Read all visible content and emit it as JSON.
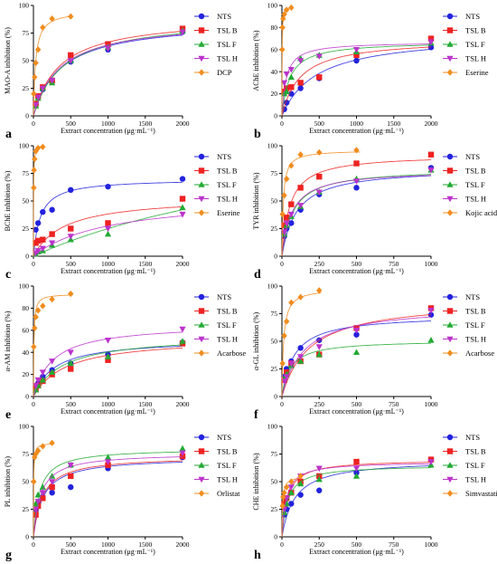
{
  "colors": {
    "NTS": "#2222dd",
    "TSL B": "#ee2222",
    "TSL F": "#22aa33",
    "TSL H": "#bb33cc",
    "control": "#f08c1e"
  },
  "chart_data": [
    {
      "type": "scatter",
      "panel_label": "a",
      "xlabel": "Extract concentration (μg·mL⁻¹)",
      "ylabel": "MAO-A inhibition (%)",
      "xlim": [
        0,
        2000
      ],
      "ylim": [
        0,
        100
      ],
      "xticks": [
        0,
        500,
        1000,
        1500,
        2000
      ],
      "yticks": [
        0,
        25,
        50,
        75,
        100
      ],
      "legend_position": "right",
      "series": [
        {
          "name": "NTS",
          "marker": "circle",
          "x": [
            31.25,
            62.5,
            125,
            250,
            500,
            1000,
            2000
          ],
          "y": [
            10,
            17,
            24,
            31,
            49,
            60,
            76
          ]
        },
        {
          "name": "TSL B",
          "marker": "square",
          "x": [
            31.25,
            62.5,
            125,
            250,
            500,
            1000,
            2000
          ],
          "y": [
            11,
            18,
            26,
            32,
            55,
            65,
            79
          ]
        },
        {
          "name": "TSL F",
          "marker": "triangle",
          "x": [
            31.25,
            62.5,
            125,
            250,
            500,
            1000,
            2000
          ],
          "y": [
            9,
            16,
            25,
            30,
            50,
            62,
            77
          ]
        },
        {
          "name": "TSL H",
          "marker": "triangle-down",
          "x": [
            31.25,
            62.5,
            125,
            250,
            500,
            1000,
            2000
          ],
          "y": [
            10,
            17,
            25,
            32,
            50,
            61,
            76
          ]
        },
        {
          "name": "DCP",
          "marker": "diamond",
          "x": [
            3.9,
            15.6,
            31.25,
            62.5,
            125,
            250,
            500
          ],
          "y": [
            20,
            35,
            48,
            60,
            80,
            88,
            90
          ]
        }
      ]
    },
    {
      "type": "scatter",
      "panel_label": "b",
      "xlabel": "Extract concentration (μg·mL⁻¹)",
      "ylabel": "AChE inhibition (%)",
      "xlim": [
        0,
        2000
      ],
      "ylim": [
        0,
        100
      ],
      "xticks": [
        0,
        500,
        1000,
        1500,
        2000
      ],
      "yticks": [
        0,
        20,
        40,
        60,
        80,
        100
      ],
      "legend_position": "right",
      "series": [
        {
          "name": "NTS",
          "marker": "circle",
          "x": [
            31.25,
            62.5,
            125,
            250,
            500,
            1000,
            2000
          ],
          "y": [
            6,
            12,
            20,
            25,
            34,
            50,
            62
          ]
        },
        {
          "name": "TSL B",
          "marker": "square",
          "x": [
            31.25,
            62.5,
            125,
            250,
            500,
            1000,
            2000
          ],
          "y": [
            22,
            25,
            26,
            30,
            35,
            55,
            70
          ]
        },
        {
          "name": "TSL F",
          "marker": "triangle",
          "x": [
            31.25,
            62.5,
            125,
            250,
            500,
            1000,
            2000
          ],
          "y": [
            20,
            22,
            35,
            52,
            55,
            58,
            66
          ]
        },
        {
          "name": "TSL H",
          "marker": "triangle-down",
          "x": [
            31.25,
            62.5,
            125,
            250,
            500,
            1000,
            2000
          ],
          "y": [
            30,
            38,
            42,
            50,
            54,
            60,
            67
          ]
        },
        {
          "name": "Eserine",
          "marker": "diamond",
          "x": [
            3.9,
            7.8,
            15.6,
            31.25,
            62.5,
            125
          ],
          "y": [
            60,
            80,
            88,
            92,
            96,
            98
          ]
        }
      ]
    },
    {
      "type": "scatter",
      "panel_label": "c",
      "xlabel": "Extract concentration (μg·mL⁻¹)",
      "ylabel": "BChE inhibition (%)",
      "xlim": [
        0,
        2000
      ],
      "ylim": [
        0,
        100
      ],
      "xticks": [
        0,
        500,
        1000,
        1500,
        2000
      ],
      "yticks": [
        0,
        25,
        50,
        75,
        100
      ],
      "legend_position": "right",
      "series": [
        {
          "name": "NTS",
          "marker": "circle",
          "x": [
            31.25,
            62.5,
            125,
            250,
            500,
            1000,
            2000
          ],
          "y": [
            24,
            30,
            40,
            42,
            60,
            63,
            70
          ]
        },
        {
          "name": "TSL B",
          "marker": "square",
          "x": [
            31.25,
            62.5,
            125,
            250,
            500,
            1000,
            2000
          ],
          "y": [
            12,
            14,
            15,
            20,
            25,
            30,
            52
          ]
        },
        {
          "name": "TSL F",
          "marker": "triangle",
          "x": [
            31.25,
            62.5,
            125,
            250,
            500,
            1000,
            2000
          ],
          "y": [
            2,
            4,
            5,
            10,
            15,
            20,
            44
          ]
        },
        {
          "name": "TSL H",
          "marker": "triangle-down",
          "x": [
            31.25,
            62.5,
            125,
            250,
            500,
            1000,
            2000
          ],
          "y": [
            3,
            5,
            7,
            12,
            18,
            25,
            38
          ]
        },
        {
          "name": "Eserine",
          "marker": "diamond",
          "x": [
            3.9,
            7.8,
            15.6,
            31.25,
            62.5,
            125
          ],
          "y": [
            62,
            78,
            88,
            95,
            98,
            99
          ]
        }
      ]
    },
    {
      "type": "scatter",
      "panel_label": "d",
      "xlabel": "Extract concentration (μg·mL⁻¹)",
      "ylabel": "TYR inhibition (%)",
      "xlim": [
        0,
        1000
      ],
      "ylim": [
        0,
        100
      ],
      "xticks": [
        0,
        250,
        500,
        750,
        1000
      ],
      "yticks": [
        0,
        25,
        50,
        75,
        100
      ],
      "legend_position": "right",
      "series": [
        {
          "name": "NTS",
          "marker": "circle",
          "x": [
            15.6,
            31.25,
            62.5,
            125,
            250,
            500,
            1000
          ],
          "y": [
            18,
            25,
            30,
            42,
            56,
            62,
            80
          ]
        },
        {
          "name": "TSL B",
          "marker": "square",
          "x": [
            15.6,
            31.25,
            62.5,
            125,
            250,
            500,
            1000
          ],
          "y": [
            28,
            35,
            47,
            62,
            72,
            84,
            92
          ]
        },
        {
          "name": "TSL F",
          "marker": "triangle",
          "x": [
            15.6,
            31.25,
            62.5,
            125,
            250,
            500,
            1000
          ],
          "y": [
            20,
            28,
            36,
            45,
            58,
            70,
            78
          ]
        },
        {
          "name": "TSL H",
          "marker": "triangle-down",
          "x": [
            15.6,
            31.25,
            62.5,
            125,
            250,
            500,
            1000
          ],
          "y": [
            22,
            30,
            38,
            46,
            58,
            68,
            78
          ]
        },
        {
          "name": "Kojic acid",
          "marker": "diamond",
          "x": [
            3.9,
            15.6,
            31.25,
            62.5,
            125,
            250,
            500
          ],
          "y": [
            38,
            55,
            70,
            82,
            92,
            94,
            96
          ]
        }
      ]
    },
    {
      "type": "scatter",
      "panel_label": "e",
      "xlabel": "Extract concentration (μg·mL⁻¹)",
      "ylabel": "α-AM inhibition (%)",
      "xlim": [
        0,
        2000
      ],
      "ylim": [
        0,
        100
      ],
      "xticks": [
        0,
        500,
        1000,
        1500,
        2000
      ],
      "yticks": [
        0,
        20,
        40,
        60,
        80,
        100
      ],
      "legend_position": "right",
      "series": [
        {
          "name": "NTS",
          "marker": "circle",
          "x": [
            31.25,
            62.5,
            125,
            250,
            500,
            1000,
            2000
          ],
          "y": [
            8,
            12,
            18,
            24,
            30,
            38,
            49
          ]
        },
        {
          "name": "TSL B",
          "marker": "square",
          "x": [
            31.25,
            62.5,
            125,
            250,
            500,
            1000,
            2000
          ],
          "y": [
            7,
            10,
            14,
            20,
            25,
            33,
            48
          ]
        },
        {
          "name": "TSL F",
          "marker": "triangle",
          "x": [
            31.25,
            62.5,
            125,
            250,
            500,
            1000,
            2000
          ],
          "y": [
            6,
            10,
            15,
            22,
            30,
            36,
            50
          ]
        },
        {
          "name": "TSL H",
          "marker": "triangle-down",
          "x": [
            31.25,
            62.5,
            125,
            250,
            500,
            1000,
            2000
          ],
          "y": [
            10,
            15,
            22,
            32,
            40,
            51,
            61
          ]
        },
        {
          "name": "Acarbose",
          "marker": "diamond",
          "x": [
            3.9,
            15.6,
            31.25,
            62.5,
            125,
            250,
            500
          ],
          "y": [
            45,
            62,
            72,
            78,
            82,
            88,
            93
          ]
        }
      ]
    },
    {
      "type": "scatter",
      "panel_label": "f",
      "xlabel": "Extract concentration (μg·mL⁻¹)",
      "ylabel": "α-GL inhibition (%)",
      "xlim": [
        0,
        1000
      ],
      "ylim": [
        0,
        100
      ],
      "xticks": [
        0,
        250,
        500,
        750,
        1000
      ],
      "yticks": [
        0,
        25,
        50,
        75,
        100
      ],
      "legend_position": "right",
      "series": [
        {
          "name": "NTS",
          "marker": "circle",
          "x": [
            15.6,
            31.25,
            62.5,
            125,
            250,
            500,
            1000
          ],
          "y": [
            18,
            25,
            32,
            44,
            51,
            56,
            74
          ]
        },
        {
          "name": "TSL B",
          "marker": "square",
          "x": [
            15.6,
            31.25,
            62.5,
            125,
            250,
            500,
            1000
          ],
          "y": [
            15,
            22,
            30,
            32,
            38,
            62,
            80
          ]
        },
        {
          "name": "TSL F",
          "marker": "triangle",
          "x": [
            15.6,
            31.25,
            62.5,
            125,
            250,
            500,
            1000
          ],
          "y": [
            16,
            20,
            28,
            32,
            38,
            40,
            51
          ]
        },
        {
          "name": "TSL H",
          "marker": "triangle-down",
          "x": [
            15.6,
            31.25,
            62.5,
            125,
            250,
            500,
            1000
          ],
          "y": [
            14,
            18,
            30,
            36,
            45,
            60,
            78
          ]
        },
        {
          "name": "Acarbose",
          "marker": "diamond",
          "x": [
            3.9,
            15.6,
            31.25,
            62.5,
            125,
            250
          ],
          "y": [
            30,
            55,
            68,
            85,
            90,
            96
          ]
        }
      ]
    },
    {
      "type": "scatter",
      "panel_label": "g",
      "xlabel": "Extract concentration (μg·mL⁻¹)",
      "ylabel": "PL inhibition (%)",
      "xlim": [
        0,
        2000
      ],
      "ylim": [
        0,
        100
      ],
      "xticks": [
        0,
        500,
        1000,
        1500,
        2000
      ],
      "yticks": [
        0,
        25,
        50,
        75,
        100
      ],
      "legend_position": "right",
      "series": [
        {
          "name": "NTS",
          "marker": "circle",
          "x": [
            31.25,
            62.5,
            125,
            250,
            500,
            1000,
            2000
          ],
          "y": [
            25,
            30,
            36,
            40,
            45,
            62,
            72
          ]
        },
        {
          "name": "TSL B",
          "marker": "square",
          "x": [
            31.25,
            62.5,
            125,
            250,
            500,
            1000,
            2000
          ],
          "y": [
            20,
            28,
            35,
            45,
            55,
            65,
            73
          ]
        },
        {
          "name": "TSL F",
          "marker": "triangle",
          "x": [
            31.25,
            62.5,
            125,
            250,
            500,
            1000,
            2000
          ],
          "y": [
            30,
            38,
            45,
            55,
            65,
            72,
            80
          ]
        },
        {
          "name": "TSL H",
          "marker": "triangle-down",
          "x": [
            31.25,
            62.5,
            125,
            250,
            500,
            1000,
            2000
          ],
          "y": [
            25,
            32,
            40,
            50,
            65,
            68,
            76
          ]
        },
        {
          "name": "Orlistat",
          "marker": "diamond",
          "x": [
            3.9,
            15.6,
            31.25,
            62.5,
            125,
            250
          ],
          "y": [
            50,
            72,
            75,
            78,
            82,
            85
          ]
        }
      ]
    },
    {
      "type": "scatter",
      "panel_label": "h",
      "xlabel": "Extract concentration (μg·mL⁻¹)",
      "ylabel": "CHE inhibition (%)",
      "xlim": [
        0,
        1000
      ],
      "ylim": [
        0,
        100
      ],
      "xticks": [
        0,
        250,
        500,
        750,
        1000
      ],
      "yticks": [
        0,
        25,
        50,
        75,
        100
      ],
      "legend_position": "right",
      "series": [
        {
          "name": "NTS",
          "marker": "circle",
          "x": [
            15.6,
            31.25,
            62.5,
            125,
            250,
            500,
            1000
          ],
          "y": [
            20,
            25,
            30,
            38,
            42,
            58,
            70
          ]
        },
        {
          "name": "TSL B",
          "marker": "square",
          "x": [
            15.6,
            31.25,
            62.5,
            125,
            250,
            500,
            1000
          ],
          "y": [
            30,
            35,
            40,
            50,
            55,
            68,
            70
          ]
        },
        {
          "name": "TSL F",
          "marker": "triangle",
          "x": [
            15.6,
            31.25,
            62.5,
            125,
            250,
            500,
            1000
          ],
          "y": [
            22,
            30,
            40,
            48,
            52,
            55,
            65
          ]
        },
        {
          "name": "TSL H",
          "marker": "triangle-down",
          "x": [
            15.6,
            31.25,
            62.5,
            125,
            250,
            500,
            1000
          ],
          "y": [
            25,
            35,
            45,
            55,
            62,
            62,
            68
          ]
        },
        {
          "name": "Simvastatin",
          "marker": "diamond",
          "x": [
            3.9,
            7.8,
            15.6,
            31.25,
            62.5,
            125
          ],
          "y": [
            28,
            36,
            40,
            45,
            50,
            55
          ]
        }
      ]
    }
  ]
}
